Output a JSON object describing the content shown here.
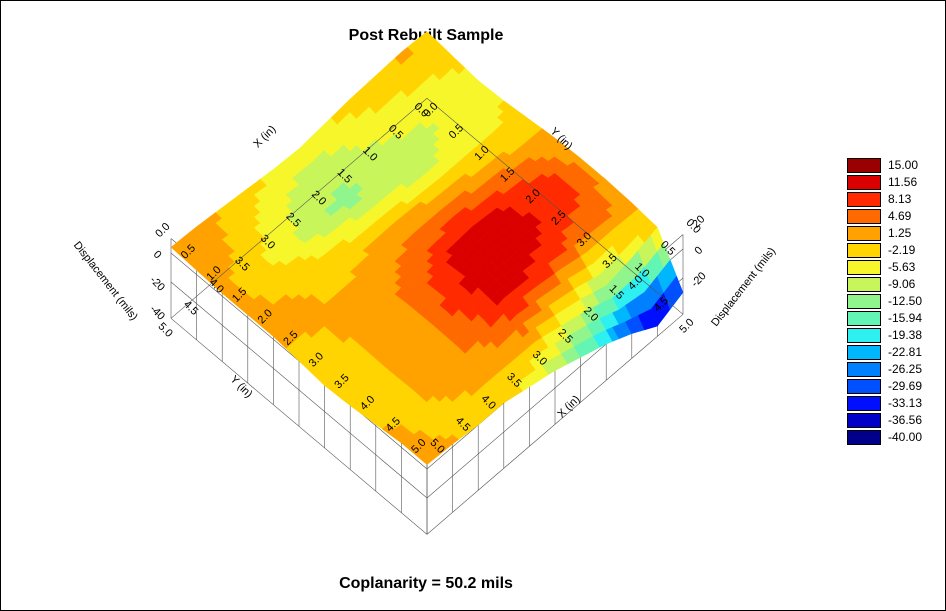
{
  "chart_data": {
    "type": "heatmap",
    "title": "Post Rebuilt Sample",
    "footer": "Coplanarity = 50.2 mils",
    "xlabel": "X (in)",
    "ylabel": "Y (in)",
    "zlabel": "Displacement (mils)",
    "x_ticks": [
      "0.0",
      "0.5",
      "1.0",
      "1.5",
      "2.0",
      "2.5",
      "3.0",
      "3.5",
      "4.0",
      "4.5",
      "5.0"
    ],
    "y_ticks": [
      "0.0",
      "0.5",
      "1.0",
      "1.5",
      "2.0",
      "2.5",
      "3.0",
      "3.5",
      "4.0",
      "4.5",
      "5.0"
    ],
    "z_ticks": [
      "0",
      "-20",
      "-40"
    ],
    "z_ticks_right": [
      "20",
      "0",
      "-20"
    ],
    "xlim": [
      0,
      5
    ],
    "ylim": [
      0,
      5
    ],
    "zlim": [
      -40,
      15
    ],
    "legend": {
      "placement": "right",
      "levels": [
        "15.00",
        "11.56",
        "8.13",
        "4.69",
        "1.25",
        "-2.19",
        "-5.63",
        "-9.06",
        "-12.50",
        "-15.94",
        "-19.38",
        "-22.81",
        "-26.25",
        "-29.69",
        "-33.13",
        "-36.56",
        "-40.00"
      ],
      "colors": [
        "#9b0000",
        "#db0000",
        "#ff2a00",
        "#ff6a00",
        "#ffa200",
        "#ffd400",
        "#f6f62a",
        "#c8f55a",
        "#8ff58c",
        "#63f5b4",
        "#2ef0f0",
        "#00b7ff",
        "#0080ff",
        "#0050ff",
        "#0010ff",
        "#0000c8",
        "#00008a"
      ]
    },
    "z_grid": [
      [
        1,
        -1,
        -3,
        -2,
        0,
        2,
        3,
        3,
        2,
        0,
        -30
      ],
      [
        2,
        -2,
        -5,
        -4,
        -1,
        4,
        8,
        8,
        5,
        -6,
        -38
      ],
      [
        1,
        -3,
        -6,
        -5,
        0,
        6,
        10,
        10,
        6,
        -10,
        -28
      ],
      [
        0,
        -4,
        -7,
        -6,
        1,
        7,
        12,
        13,
        9,
        -4,
        -20
      ],
      [
        -2,
        -6,
        -9,
        -5,
        2,
        8,
        14,
        15,
        11,
        0,
        -14
      ],
      [
        -4,
        -8,
        -10,
        -4,
        3,
        7,
        12,
        14,
        12,
        4,
        -8
      ],
      [
        -3,
        -7,
        -9,
        -3,
        2,
        5,
        8,
        9,
        7,
        3,
        -4
      ],
      [
        -1,
        -4,
        -6,
        -2,
        1,
        3,
        4,
        4,
        4,
        2,
        0
      ],
      [
        1,
        -1,
        -3,
        0,
        1,
        2,
        3,
        3,
        3,
        1,
        0
      ],
      [
        3,
        2,
        0,
        1,
        2,
        1,
        0,
        -1,
        0,
        0,
        2
      ],
      [
        4,
        3,
        2,
        2,
        2,
        0,
        -2,
        -1,
        1,
        3,
        3
      ]
    ]
  }
}
